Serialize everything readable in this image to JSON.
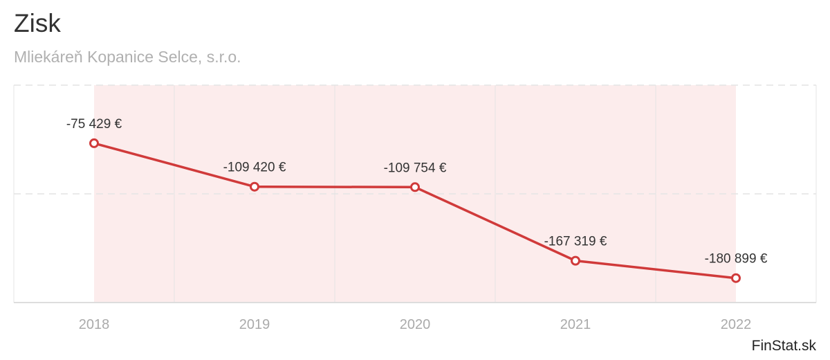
{
  "header": {
    "title": "Zisk",
    "subtitle": "Mliekáreň Kopanice Selce, s.r.o."
  },
  "footer": {
    "brand": "FinStat.sk"
  },
  "colors": {
    "line": "#d03a3a",
    "area": "#fcecec",
    "grid": "#e4e4e4",
    "axis": "#dddddd"
  },
  "chart_data": {
    "type": "line",
    "title": "Zisk",
    "subtitle": "Mliekáreň Kopanice Selce, s.r.o.",
    "xlabel": "",
    "ylabel": "",
    "categories": [
      "2018",
      "2019",
      "2020",
      "2021",
      "2022"
    ],
    "series": [
      {
        "values": [
          -75429,
          -109420,
          -109754,
          -167319,
          -180899
        ],
        "labels": [
          "-75 429 €",
          "-109 420 €",
          "-109 754 €",
          "-167 319 €",
          "-180 899 €"
        ]
      }
    ],
    "ylim": [
      -200000,
      0
    ],
    "grid": true,
    "legend": "none"
  }
}
